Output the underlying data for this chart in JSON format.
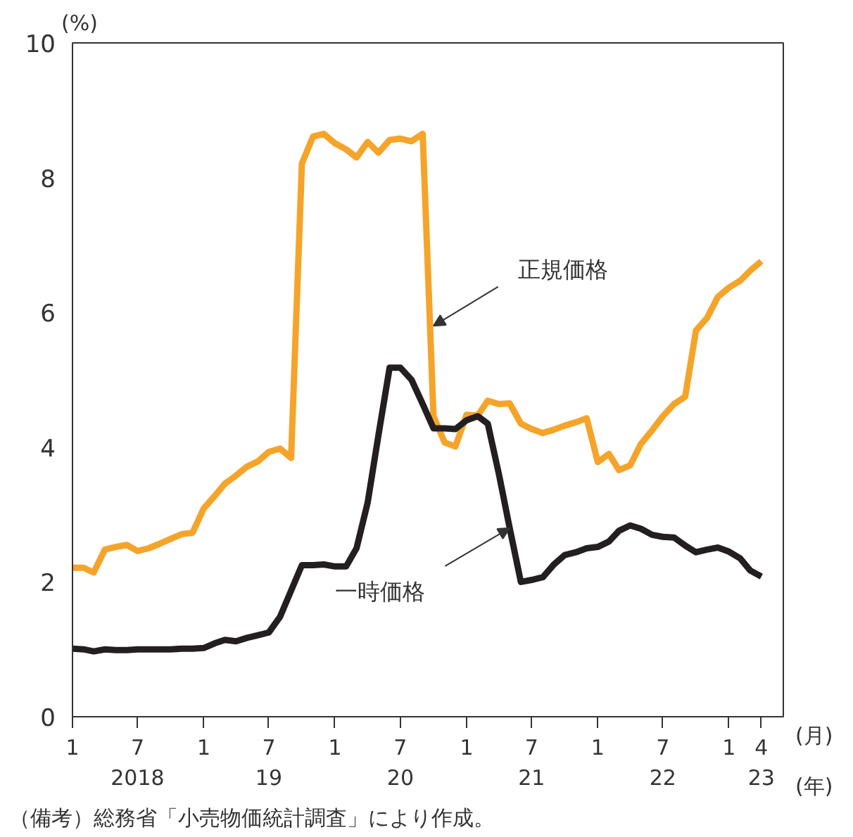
{
  "chart_data": {
    "type": "line",
    "ylabel": "(%)",
    "xlabel": "(月)\n(年)",
    "x": [
      "2018-01",
      "2018-02",
      "2018-03",
      "2018-04",
      "2018-05",
      "2018-06",
      "2018-07",
      "2018-08",
      "2018-09",
      "2018-10",
      "2018-11",
      "2018-12",
      "2019-01",
      "2019-02",
      "2019-03",
      "2019-04",
      "2019-05",
      "2019-06",
      "2019-07",
      "2019-08",
      "2019-09",
      "2019-10",
      "2019-11",
      "2019-12",
      "2020-01",
      "2020-02",
      "2020-03",
      "2020-04",
      "2020-05",
      "2020-06",
      "2020-07",
      "2020-08",
      "2020-09",
      "2020-10",
      "2020-11",
      "2020-12",
      "2021-01",
      "2021-02",
      "2021-03",
      "2021-04",
      "2021-05",
      "2021-06",
      "2021-07",
      "2021-08",
      "2021-09",
      "2021-10",
      "2021-11",
      "2021-12",
      "2022-01",
      "2022-02",
      "2022-03",
      "2022-04",
      "2022-05",
      "2022-06",
      "2022-07",
      "2022-08",
      "2022-09",
      "2022-10",
      "2022-11",
      "2022-12",
      "2023-01",
      "2023-02",
      "2023-03",
      "2023-04"
    ],
    "series": [
      {
        "color": "#f5a42a",
        "values": [
          2.21,
          2.21,
          2.14,
          2.48,
          2.52,
          2.55,
          2.46,
          2.5,
          2.57,
          2.64,
          2.71,
          2.73,
          3.09,
          3.28,
          3.46,
          3.58,
          3.71,
          3.79,
          3.93,
          3.98,
          3.84,
          8.21,
          8.61,
          8.65,
          8.51,
          8.42,
          8.3,
          8.53,
          8.37,
          8.56,
          8.58,
          8.54,
          8.65,
          4.46,
          4.07,
          4.01,
          4.48,
          4.47,
          4.69,
          4.64,
          4.65,
          4.35,
          4.27,
          4.21,
          4.26,
          4.32,
          4.37,
          4.43,
          3.78,
          3.9,
          3.66,
          3.73,
          4.05,
          4.25,
          4.46,
          4.64,
          4.75,
          5.73,
          5.92,
          6.23,
          6.37,
          6.47,
          6.62,
          6.76
        ]
      },
      {
        "color": "#231f20",
        "values": [
          1.01,
          1.0,
          0.97,
          1.0,
          0.99,
          0.99,
          1.0,
          1.0,
          1.0,
          1.0,
          1.01,
          1.01,
          1.02,
          1.09,
          1.14,
          1.12,
          1.17,
          1.21,
          1.25,
          1.48,
          1.87,
          2.25,
          2.25,
          2.26,
          2.23,
          2.23,
          2.5,
          3.18,
          4.18,
          5.18,
          5.18,
          5.0,
          4.64,
          4.28,
          4.28,
          4.27,
          4.4,
          4.46,
          4.35,
          3.6,
          2.8,
          2.0,
          2.03,
          2.07,
          2.26,
          2.4,
          2.44,
          2.5,
          2.52,
          2.6,
          2.76,
          2.84,
          2.79,
          2.7,
          2.67,
          2.66,
          2.54,
          2.44,
          2.48,
          2.51,
          2.45,
          2.35,
          2.17,
          2.08
        ]
      }
    ],
    "xlim": [
      "2018-01",
      "2023-06"
    ],
    "xticks": [
      {
        "value": "2018-01",
        "label": "1"
      },
      {
        "value": "2018-07",
        "label": "7\n2018"
      },
      {
        "value": "2019-01",
        "label": "1"
      },
      {
        "value": "2019-07",
        "label": "7\n19"
      },
      {
        "value": "2020-01",
        "label": "1"
      },
      {
        "value": "2020-07",
        "label": "7\n20"
      },
      {
        "value": "2021-01",
        "label": "1"
      },
      {
        "value": "2021-07",
        "label": "7\n21"
      },
      {
        "value": "2022-01",
        "label": "1"
      },
      {
        "value": "2022-07",
        "label": "7\n22"
      },
      {
        "value": "2023-01",
        "label": "1"
      },
      {
        "value": "2023-04",
        "label": "4\n23"
      }
    ],
    "ylim": [
      0,
      10
    ],
    "yticks": [
      0,
      2,
      4,
      6,
      8,
      10
    ],
    "grid": false,
    "marker": "none",
    "line_style": "solid",
    "annotations": [
      {
        "text": "正規価格",
        "x": "2020-10",
        "y": 5.8
      },
      {
        "text": "一時価格",
        "x": "2021-05",
        "y": 2.8
      },
      "（備考）総務省「小売物価統計調査」により作成。"
    ]
  }
}
